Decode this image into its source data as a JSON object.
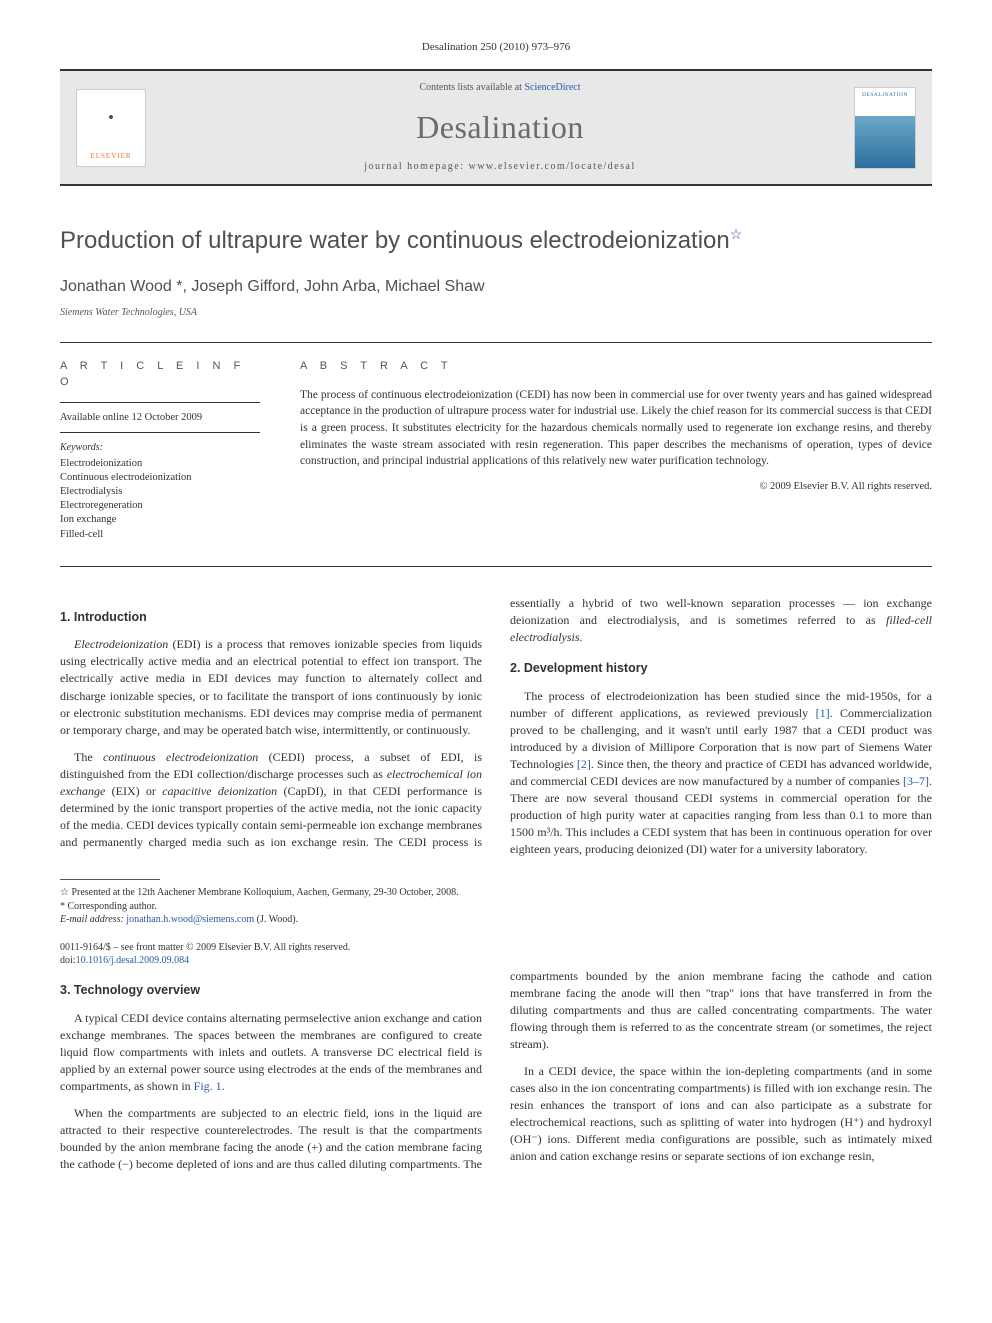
{
  "journal_ref": "Desalination 250 (2010) 973–976",
  "header": {
    "contents_line_prefix": "Contents lists available at ",
    "contents_link": "ScienceDirect",
    "journal_title": "Desalination",
    "homepage_prefix": "journal homepage: ",
    "homepage_url": "www.elsevier.com/locate/desal",
    "elsevier_label": "ELSEVIER"
  },
  "article": {
    "title": "Production of ultrapure water by continuous electrodeionization",
    "authors": "Jonathan Wood *, Joseph Gifford, John Arba, Michael Shaw",
    "affiliation": "Siemens Water Technologies, USA"
  },
  "info": {
    "heading": "A R T I C L E    I N F O",
    "available": "Available online 12 October 2009",
    "keywords_label": "Keywords:",
    "keywords": "Electrodeionization\nContinuous electrodeionization\nElectrodialysis\nElectroregeneration\nIon exchange\nFilled-cell"
  },
  "abstract": {
    "heading": "A B S T R A C T",
    "text": "The process of continuous electrodeionization (CEDI) has now been in commercial use for over twenty years and has gained widespread acceptance in the production of ultrapure process water for industrial use. Likely the chief reason for its commercial success is that CEDI is a green process. It substitutes electricity for the hazardous chemicals normally used to regenerate ion exchange resins, and thereby eliminates the waste stream associated with resin regeneration. This paper describes the mechanisms of operation, types of device construction, and principal industrial applications of this relatively new water purification technology.",
    "copyright": "© 2009 Elsevier B.V. All rights reserved."
  },
  "sections": {
    "s1": {
      "title": "1. Introduction",
      "p1a": "Electrodeionization",
      "p1b": " (EDI) is a process that removes ionizable species from liquids using electrically active media and an electrical potential to effect ion transport. The electrically active media in EDI devices may function to alternately collect and discharge ionizable species, or to facilitate the transport of ions continuously by ionic or electronic substitution mechanisms. EDI devices may comprise media of permanent or temporary charge, and may be operated batch wise, intermittently, or continuously.",
      "p2a": "The ",
      "p2b": "continuous electrodeionization",
      "p2c": " (CEDI) process, a subset of EDI, is distinguished from the EDI collection/discharge processes such as ",
      "p2d": "electrochemical ion exchange",
      "p2e": " (EIX) or ",
      "p2f": "capacitive deionization",
      "p2g": " (CapDI), in that CEDI performance is determined by the ionic transport properties of the active media, not the ionic capacity of the media. CEDI devices typically contain semi-permeable ion exchange membranes and permanently charged media such as ion exchange resin. The CEDI process is essentially a hybrid of two well-known separation processes — ion exchange deionization and electrodialysis, and is sometimes referred to as ",
      "p2h": "filled-cell electrodialysis",
      "p2i": "."
    },
    "s2": {
      "title": "2. Development history",
      "p1a": "The process of electrodeionization has been studied since the mid-1950s, for a number of different applications, as reviewed previously ",
      "p1b": "[1]",
      "p1c": ". Commercialization proved to be challenging, and it wasn't until early 1987 that a CEDI product was introduced by a division of Millipore Corporation that is now part of Siemens Water Technologies ",
      "p1d": "[2]",
      "p1e": ". Since then, the theory and practice of CEDI has advanced worldwide, and commercial CEDI devices are now manufactured by a number of companies ",
      "p1f": "[3–7]",
      "p1g": ". There are now several thousand CEDI systems in commercial operation for the production of high purity water at capacities ranging from less than 0.1 to more than 1500 m³/h. This includes a CEDI system that has been in continuous operation for over eighteen years, producing deionized (DI) water for a university laboratory."
    },
    "s3": {
      "title": "3. Technology overview",
      "p1a": "A typical CEDI device contains alternating permselective anion exchange and cation exchange membranes. The spaces between the membranes are configured to create liquid flow compartments with inlets and outlets. A transverse DC electrical field is applied by an external power source using electrodes at the ends of the membranes and compartments, as shown in ",
      "p1b": "Fig. 1",
      "p1c": ".",
      "p2": "When the compartments are subjected to an electric field, ions in the liquid are attracted to their respective counterelectrodes. The result is that the compartments bounded by the anion membrane facing the anode (+) and the cation membrane facing the cathode (−) become depleted of ions and are thus called diluting compartments. The compartments bounded by the anion membrane facing the cathode and cation membrane facing the anode will then \"trap\" ions that have transferred in from the diluting compartments and thus are called concentrating compartments. The water flowing through them is referred to as the concentrate stream (or sometimes, the reject stream).",
      "p3": "In a CEDI device, the space within the ion-depleting compartments (and in some cases also in the ion concentrating compartments) is filled with ion exchange resin. The resin enhances the transport of ions and can also participate as a substrate for electrochemical reactions, such as splitting of water into hydrogen (H⁺) and hydroxyl (OH⁻) ions. Different media configurations are possible, such as intimately mixed anion and cation exchange resins or separate sections of ion exchange resin,"
    }
  },
  "footnotes": {
    "f1": "☆ Presented at the 12th Aachener Membrane Kolloquium, Aachen, Germany, 29-30 October, 2008.",
    "f2": "* Corresponding author.",
    "f3_label": "E-mail address: ",
    "f3_email": "jonathan.h.wood@siemens.com",
    "f3_suffix": " (J. Wood)."
  },
  "bottom": {
    "line1": "0011-9164/$ – see front matter © 2009 Elsevier B.V. All rights reserved.",
    "doi_label": "doi:",
    "doi": "10.1016/j.desal.2009.09.084"
  },
  "colors": {
    "link": "#2a5aa8",
    "text": "#323232",
    "gray_bg": "#e8e8e8",
    "elsevier_orange": "#e8762d",
    "cover_blue": "#2d6e9e"
  }
}
